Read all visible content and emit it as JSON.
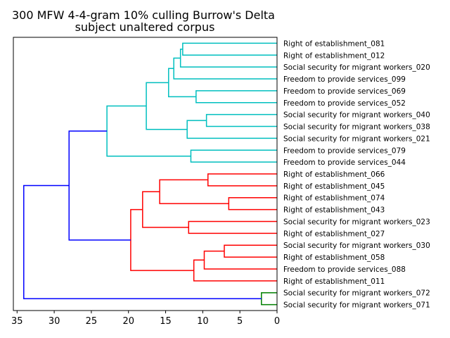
{
  "chart_data": {
    "type": "dendrogram",
    "title_lines": [
      "300 MFW 4-4-gram 10% culling Burrow's Delta",
      "subject unaltered corpus"
    ],
    "orientation": "left",
    "xlim": [
      35.5,
      0
    ],
    "x_ticks": [
      35,
      30,
      25,
      20,
      15,
      10,
      5,
      0
    ],
    "leaves": [
      "Right of establishment_081",
      "Right of establishment_012",
      "Social security for migrant workers_020",
      "Freedom to provide services_099",
      "Freedom to provide services_069",
      "Freedom to provide services_052",
      "Social security for migrant workers_040",
      "Social security for migrant workers_038",
      "Social security for migrant workers_021",
      "Freedom to provide services_079",
      "Freedom to provide services_044",
      "Right of establishment_066",
      "Right of establishment_045",
      "Right of establishment_074",
      "Right of establishment_043",
      "Social security for migrant workers_023",
      "Right of establishment_027",
      "Social security for migrant workers_030",
      "Right of establishment_058",
      "Freedom to provide services_088",
      "Right of establishment_011",
      "Social security for migrant workers_072",
      "Social security for migrant workers_071"
    ],
    "colors": {
      "cyan_cluster": "#00bfbf",
      "red_cluster": "#ff0000",
      "green_cluster": "#008000",
      "links": "#0000ff"
    },
    "merges": [
      {
        "id": "c1",
        "a": 0,
        "b": 1,
        "height": 12.7,
        "color": "cyan_cluster"
      },
      {
        "id": "c2",
        "a": "c1",
        "b": 2,
        "height": 13.0,
        "color": "cyan_cluster"
      },
      {
        "id": "c3",
        "a": "c2",
        "b": 3,
        "height": 13.9,
        "color": "cyan_cluster"
      },
      {
        "id": "c4",
        "a": 4,
        "b": 5,
        "height": 10.9,
        "color": "cyan_cluster"
      },
      {
        "id": "c5",
        "a": "c3",
        "b": "c4",
        "height": 14.6,
        "color": "cyan_cluster"
      },
      {
        "id": "c6",
        "a": 6,
        "b": 7,
        "height": 9.5,
        "color": "cyan_cluster"
      },
      {
        "id": "c7",
        "a": "c6",
        "b": 8,
        "height": 12.1,
        "color": "cyan_cluster"
      },
      {
        "id": "c8",
        "a": "c5",
        "b": "c7",
        "height": 17.6,
        "color": "cyan_cluster"
      },
      {
        "id": "c9",
        "a": 9,
        "b": 10,
        "height": 11.6,
        "color": "cyan_cluster"
      },
      {
        "id": "c10",
        "a": "c8",
        "b": "c9",
        "height": 22.9,
        "color": "cyan_cluster"
      },
      {
        "id": "r1",
        "a": 11,
        "b": 12,
        "height": 9.3,
        "color": "red_cluster"
      },
      {
        "id": "r2",
        "a": 13,
        "b": 14,
        "height": 6.5,
        "color": "red_cluster"
      },
      {
        "id": "r3",
        "a": "r1",
        "b": "r2",
        "height": 15.8,
        "color": "red_cluster"
      },
      {
        "id": "r4",
        "a": 15,
        "b": 16,
        "height": 11.9,
        "color": "red_cluster"
      },
      {
        "id": "r5",
        "a": "r3",
        "b": "r4",
        "height": 18.1,
        "color": "red_cluster"
      },
      {
        "id": "r6",
        "a": 17,
        "b": 18,
        "height": 7.1,
        "color": "red_cluster"
      },
      {
        "id": "r7",
        "a": "r6",
        "b": 19,
        "height": 9.8,
        "color": "red_cluster"
      },
      {
        "id": "r8",
        "a": "r7",
        "b": 20,
        "height": 11.2,
        "color": "red_cluster"
      },
      {
        "id": "r9",
        "a": "r5",
        "b": "r8",
        "height": 19.7,
        "color": "red_cluster"
      },
      {
        "id": "g1",
        "a": 21,
        "b": 22,
        "height": 2.1,
        "color": "green_cluster"
      },
      {
        "id": "b1",
        "a": "c10",
        "b": "r9",
        "height": 28.0,
        "color": "links"
      },
      {
        "id": "b2",
        "a": "b1",
        "b": "g1",
        "height": 34.1,
        "color": "links"
      }
    ]
  }
}
